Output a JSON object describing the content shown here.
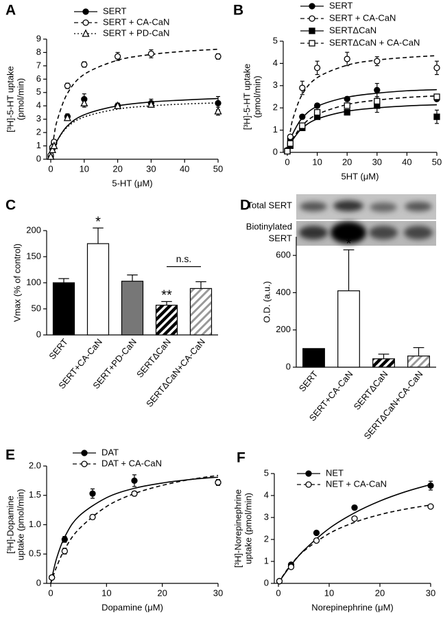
{
  "chart_data": [
    {
      "type": "scatter",
      "label": "A",
      "xlabel": "5-HT (μM)",
      "ylabel": [
        "[³H]-5-HT uptake",
        "(pmol/min)"
      ],
      "xlim": [
        0,
        50
      ],
      "xticks": [
        0,
        10,
        20,
        30,
        40,
        50
      ],
      "ylim": [
        0,
        9
      ],
      "yticks": [
        0,
        1,
        2,
        3,
        4,
        5,
        6,
        7,
        8,
        9
      ],
      "x": [
        0,
        0.5,
        1,
        5,
        10,
        20,
        30,
        50
      ],
      "series": [
        {
          "name": "SERT",
          "color": "#000000",
          "marker": "circle",
          "filled": true,
          "dash": "solid",
          "values": [
            0.2,
            0.8,
            1.2,
            3.2,
            4.5,
            4.0,
            4.2,
            4.2
          ],
          "errors": [
            0.05,
            0.1,
            0.1,
            0.2,
            0.4,
            0.2,
            0.3,
            0.5
          ],
          "curve": {
            "x": [
              0,
              1,
              2,
              5,
              10,
              20,
              30,
              40,
              50
            ],
            "y": [
              0,
              0.83,
              1.43,
              2.5,
              3.33,
              4.0,
              4.29,
              4.44,
              4.55
            ]
          }
        },
        {
          "name": "SERT + CA-CaN",
          "color": "#000000",
          "marker": "circle",
          "filled": false,
          "dash": "dashed",
          "values": [
            0.3,
            0.9,
            1.3,
            5.5,
            7.1,
            7.7,
            7.9,
            7.7
          ],
          "errors": [
            0.05,
            0.1,
            0.1,
            0.2,
            0.2,
            0.3,
            0.3,
            0.2
          ],
          "curve": {
            "x": [
              0,
              1,
              2,
              5,
              10,
              20,
              30,
              40,
              50
            ],
            "y": [
              0,
              1.78,
              2.97,
              4.94,
              6.36,
              7.42,
              7.85,
              8.09,
              8.24
            ]
          }
        },
        {
          "name": "SERT + PD-CaN",
          "color": "#000000",
          "marker": "triangle",
          "filled": false,
          "dash": "dotted",
          "values": [
            0.2,
            0.7,
            1.0,
            3.1,
            4.2,
            4.0,
            4.1,
            3.6
          ],
          "errors": [
            0.05,
            0.1,
            0.1,
            0.2,
            0.3,
            0.2,
            0.2,
            0.3
          ],
          "curve": {
            "x": [
              0,
              1,
              2,
              5,
              10,
              20,
              30,
              40,
              50
            ],
            "y": [
              0,
              0.84,
              1.42,
              2.42,
              3.17,
              3.76,
              4.0,
              4.14,
              4.22
            ]
          }
        }
      ]
    },
    {
      "type": "scatter",
      "label": "B",
      "xlabel": "5HT (μM)",
      "ylabel": [
        "[³H]-5-HT uptake",
        "(pmol/min)"
      ],
      "xlim": [
        0,
        50
      ],
      "xticks": [
        0,
        10,
        20,
        30,
        40,
        50
      ],
      "ylim": [
        0,
        5
      ],
      "yticks": [
        0,
        1,
        2,
        3,
        4,
        5
      ],
      "x": [
        0,
        1,
        5,
        10,
        20,
        30,
        50
      ],
      "series": [
        {
          "name": "SERT",
          "color": "#000000",
          "marker": "circle",
          "filled": true,
          "dash": "solid",
          "values": [
            0.1,
            0.6,
            1.6,
            2.1,
            2.4,
            2.8,
            2.4
          ],
          "errors": [
            0.05,
            0.1,
            0.1,
            0.1,
            0.1,
            0.3,
            0.1
          ],
          "curve": {
            "x": [
              0,
              1,
              2,
              5,
              10,
              20,
              30,
              40,
              50
            ],
            "y": [
              0,
              0.52,
              0.89,
              1.55,
              2.07,
              2.48,
              2.66,
              2.77,
              2.82
            ]
          }
        },
        {
          "name": "SERT + CA-CaN",
          "color": "#000000",
          "marker": "circle",
          "filled": false,
          "dash": "dashed",
          "values": [
            0.1,
            0.7,
            2.9,
            3.8,
            4.2,
            4.1,
            3.8
          ],
          "errors": [
            0.05,
            0.1,
            0.3,
            0.3,
            0.3,
            0.2,
            0.3
          ],
          "curve": {
            "x": [
              0,
              1,
              2,
              5,
              10,
              20,
              30,
              40,
              50
            ],
            "y": [
              0,
              0.94,
              1.57,
              2.61,
              3.36,
              3.92,
              4.15,
              4.27,
              4.35
            ]
          }
        },
        {
          "name": "SERTΔCaN",
          "color": "#000000",
          "marker": "square",
          "filled": true,
          "dash": "solid",
          "values": [
            0.05,
            0.3,
            1.1,
            1.6,
            1.8,
            2.1,
            1.6
          ],
          "errors": [
            0.05,
            0.1,
            0.1,
            0.1,
            0.1,
            0.3,
            0.3
          ],
          "curve": {
            "x": [
              0,
              1,
              2,
              5,
              10,
              20,
              30,
              40,
              50
            ],
            "y": [
              0,
              0.34,
              0.6,
              1.09,
              1.5,
              1.85,
              2.0,
              2.09,
              2.14
            ]
          }
        },
        {
          "name": "SERTΔCaN + CA-CaN",
          "color": "#000000",
          "marker": "square",
          "filled": false,
          "dash": "dashed",
          "values": [
            0.05,
            0.4,
            1.2,
            1.8,
            2.1,
            2.3,
            2.5
          ],
          "errors": [
            0.05,
            0.1,
            0.1,
            0.1,
            0.1,
            0.2,
            0.1
          ],
          "curve": {
            "x": [
              0,
              1,
              2,
              5,
              10,
              20,
              30,
              40,
              50
            ],
            "y": [
              0,
              0.36,
              0.64,
              1.21,
              1.71,
              2.15,
              2.35,
              2.47,
              2.54
            ]
          }
        }
      ]
    },
    {
      "type": "bar",
      "label": "C",
      "ylabel": [
        "Vmax (% of control)"
      ],
      "ylim": [
        0,
        200
      ],
      "yticks": [
        0,
        50,
        100,
        150,
        200
      ],
      "categories": [
        "SERT",
        "SERT+CA-CaN",
        "SERT+PD-CaN",
        "SERTΔCaN",
        "SERTΔCaN+CA-CaN"
      ],
      "values": [
        100,
        175,
        103,
        57,
        89
      ],
      "errors": [
        8,
        30,
        12,
        7,
        13
      ],
      "colors": [
        "#000000",
        "#ffffff",
        "#777777",
        "#000000",
        "#999999"
      ],
      "hatch": [
        false,
        false,
        false,
        true,
        true
      ],
      "annotations": [
        {
          "text": "*",
          "categories": [
            1
          ]
        },
        {
          "text": "**",
          "categories": [
            3
          ]
        },
        {
          "text": "n.s.",
          "categories": [
            3,
            4
          ]
        }
      ]
    },
    {
      "type": "bar",
      "label": "D",
      "ylabel": [
        "O.D. (a.u.)"
      ],
      "ylim": [
        0,
        700
      ],
      "yticks": [
        0,
        200,
        400,
        600
      ],
      "blot_labels": [
        [
          "Total SERT"
        ],
        [
          "Biotinylated",
          "SERT"
        ]
      ],
      "categories": [
        "SERT",
        "SERT+CA-CaN",
        "SERTΔCaN",
        "SERTΔCaN+CA-CaN"
      ],
      "values": [
        100,
        410,
        45,
        60
      ],
      "errors": [
        null,
        220,
        25,
        45
      ],
      "colors": [
        "#000000",
        "#ffffff",
        "#000000",
        "#999999"
      ],
      "hatch": [
        false,
        false,
        true,
        true
      ],
      "annotations": [
        {
          "text": "*",
          "categories": [
            1
          ]
        }
      ]
    },
    {
      "type": "scatter",
      "label": "E",
      "xlabel": "Dopamine (μM)",
      "ylabel": [
        "[³H]-Dopamine",
        "uptake (pmol/min)"
      ],
      "xlim": [
        0,
        30
      ],
      "xticks": [
        0,
        10,
        20,
        30
      ],
      "ylim": [
        0,
        2
      ],
      "yticks": [
        0,
        0.5,
        {
          "value": 1,
          "label": "1.0"
        },
        1.5,
        {
          "value": 2,
          "label": "2.0"
        }
      ],
      "x": [
        0.2,
        2.5,
        7.5,
        15,
        30
      ],
      "series": [
        {
          "name": "DAT",
          "color": "#000000",
          "marker": "circle",
          "filled": true,
          "dash": "solid",
          "values": [
            0.1,
            0.75,
            1.53,
            1.75,
            1.72
          ],
          "errors": [
            0.03,
            0.05,
            0.08,
            0.1,
            0.05
          ],
          "curve": {
            "x": [
              0,
              1,
              2.5,
              5,
              10,
              15,
              20,
              25,
              30
            ],
            "y": [
              0,
              0.41,
              0.79,
              1.14,
              1.46,
              1.62,
              1.71,
              1.77,
              1.81
            ]
          }
        },
        {
          "name": "DAT + CA-CaN",
          "color": "#000000",
          "marker": "circle",
          "filled": false,
          "dash": "dashed",
          "values": [
            0.1,
            0.55,
            1.13,
            1.53,
            1.72
          ],
          "errors": [
            0.03,
            0.05,
            0.04,
            0.04,
            0.04
          ],
          "curve": {
            "x": [
              0,
              1,
              2.5,
              5,
              10,
              15,
              20,
              25,
              30
            ],
            "y": [
              0,
              0.27,
              0.58,
              0.92,
              1.31,
              1.53,
              1.67,
              1.77,
              1.84
            ]
          }
        }
      ]
    },
    {
      "type": "scatter",
      "label": "F",
      "xlabel": "Norepinephrine (μM)",
      "ylabel": [
        "[³H]-Norepinephrine",
        "uptake (pmol/min)"
      ],
      "xlim": [
        0,
        30
      ],
      "xticks": [
        0,
        10,
        20,
        30
      ],
      "ylim": [
        0,
        5
      ],
      "yticks": [
        0,
        1,
        2,
        3,
        4,
        5
      ],
      "x": [
        0.2,
        2.5,
        7.5,
        15,
        30
      ],
      "series": [
        {
          "name": "NET",
          "color": "#000000",
          "marker": "circle",
          "filled": true,
          "dash": "solid",
          "values": [
            0.1,
            0.85,
            2.3,
            3.45,
            4.45
          ],
          "errors": [
            0.03,
            0.05,
            0.05,
            0.1,
            0.2
          ],
          "curve": {
            "x": [
              0,
              1,
              2.5,
              5,
              10,
              15,
              20,
              25,
              30
            ],
            "y": [
              0,
              0.36,
              0.83,
              1.5,
              2.5,
              3.21,
              3.75,
              4.17,
              4.5
            ]
          }
        },
        {
          "name": "NET + CA-CaN",
          "color": "#000000",
          "marker": "circle",
          "filled": false,
          "dash": "dashed",
          "values": [
            0.1,
            0.75,
            1.95,
            2.95,
            3.5
          ],
          "errors": [
            0.03,
            0.05,
            0.05,
            0.05,
            0.08
          ],
          "curve": {
            "x": [
              0,
              1,
              2.5,
              5,
              10,
              15,
              20,
              25,
              30
            ],
            "y": [
              0,
              0.38,
              0.86,
              1.47,
              2.27,
              2.78,
              3.13,
              3.38,
              3.57
            ]
          }
        }
      ]
    }
  ]
}
